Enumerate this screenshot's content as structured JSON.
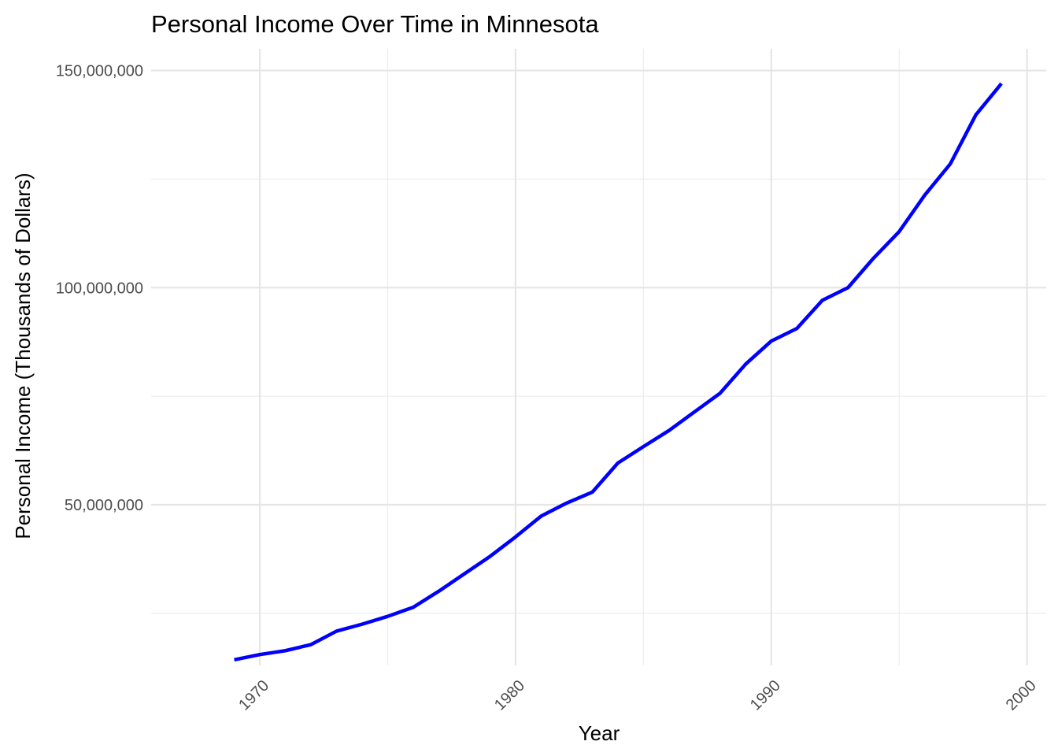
{
  "chart_data": {
    "type": "line",
    "title": "Personal Income Over Time in Minnesota",
    "xlabel": "Year",
    "ylabel": "Personal Income (Thousands of Dollars)",
    "xlim": [
      1965.75,
      2000.75
    ],
    "ylim": [
      13000000,
      155000000
    ],
    "x_ticks": [
      1970,
      1980,
      1990,
      2000
    ],
    "x_tick_labels": [
      "1970",
      "1980",
      "1990",
      "2000"
    ],
    "y_ticks": [
      50000000,
      100000000,
      150000000
    ],
    "y_tick_labels": [
      "50,000,000",
      "100,000,000",
      "150,000,000"
    ],
    "x_minor_ticks": [
      1975,
      1985,
      1995
    ],
    "y_minor_ticks": [
      25000000,
      75000000,
      125000000
    ],
    "grid": true,
    "x_tick_rotation_deg": 45,
    "line_color": "#0000ff",
    "series": [
      {
        "x": [
          1969,
          1970,
          1971,
          1972,
          1973,
          1974,
          1975,
          1976,
          1977,
          1978,
          1979,
          1980,
          1981,
          1982,
          1983,
          1984,
          1985,
          1986,
          1987,
          1988,
          1989,
          1990,
          1991,
          1992,
          1993,
          1994,
          1995,
          1996,
          1997,
          1998,
          1999
        ],
        "values": [
          14300000,
          15500000,
          16400000,
          17800000,
          20900000,
          22500000,
          24300000,
          26400000,
          30100000,
          34100000,
          38100000,
          42600000,
          47400000,
          50400000,
          52900000,
          59600000,
          63400000,
          67100000,
          71400000,
          75700000,
          82400000,
          87700000,
          90600000,
          97100000,
          100000000,
          106800000,
          112900000,
          121300000,
          128500000,
          139800000,
          147000000
        ]
      }
    ]
  }
}
